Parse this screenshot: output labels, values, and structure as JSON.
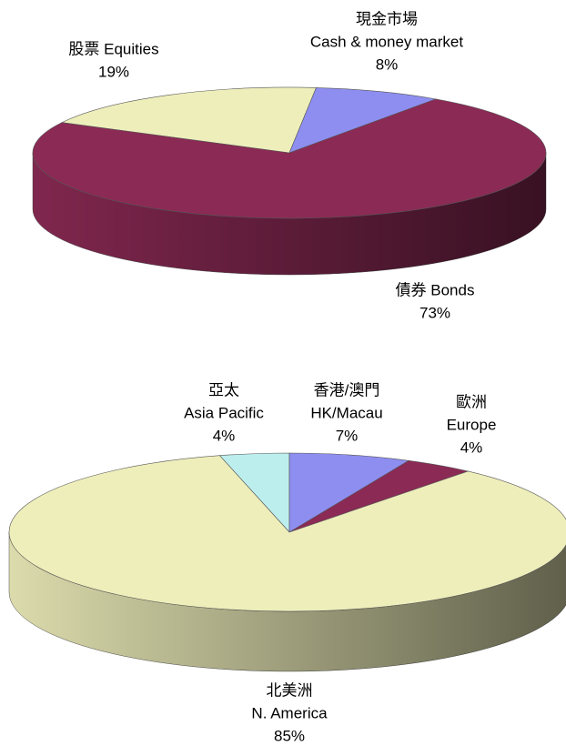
{
  "chart_data": [
    {
      "type": "pie",
      "categories": [
        [
          "股票 Equities"
        ],
        [
          "現金市場",
          "Cash & money market"
        ],
        [
          "債券 Bonds"
        ]
      ],
      "values": [
        19,
        8,
        73
      ],
      "value_labels": [
        "19%",
        "8%",
        "73%"
      ],
      "colors": [
        "#eeeebb",
        "#8e8ef0",
        "#8b2a55"
      ]
    },
    {
      "type": "pie",
      "categories": [
        [
          "亞太",
          "Asia Pacific"
        ],
        [
          "香港/澳門",
          "HK/Macau"
        ],
        [
          "歐洲",
          "Europe"
        ],
        [
          "北美洲",
          "N. America"
        ]
      ],
      "values": [
        4,
        7,
        4,
        85
      ],
      "value_labels": [
        "4%",
        "7%",
        "4%",
        "85%"
      ],
      "colors": [
        "#bdeeee",
        "#8e8ef0",
        "#8b2a55",
        "#eeeebb"
      ]
    }
  ]
}
